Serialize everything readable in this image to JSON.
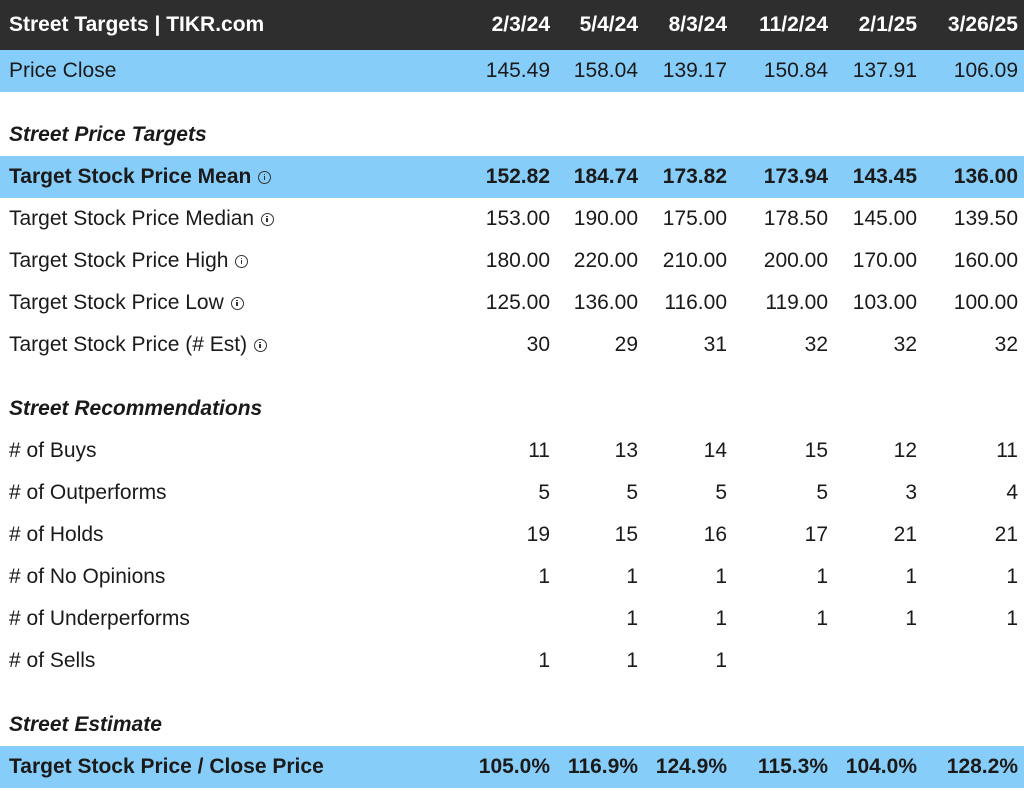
{
  "header": {
    "title": "Street Targets | TIKR.com",
    "dates": [
      "2/3/24",
      "5/4/24",
      "8/3/24",
      "11/2/24",
      "2/1/25",
      "3/26/25"
    ]
  },
  "price_close": {
    "label": "Price Close",
    "values": [
      "145.49",
      "158.04",
      "139.17",
      "150.84",
      "137.91",
      "106.09"
    ]
  },
  "sections": {
    "price_targets": "Street Price Targets",
    "recommendations": "Street Recommendations",
    "estimate": "Street Estimate"
  },
  "targets": [
    {
      "label": "Target Stock Price Mean",
      "info": true,
      "values": [
        "152.82",
        "184.74",
        "173.82",
        "173.94",
        "143.45",
        "136.00"
      ]
    },
    {
      "label": "Target Stock Price Median",
      "info": true,
      "values": [
        "153.00",
        "190.00",
        "175.00",
        "178.50",
        "145.00",
        "139.50"
      ]
    },
    {
      "label": "Target Stock Price High",
      "info": true,
      "values": [
        "180.00",
        "220.00",
        "210.00",
        "200.00",
        "170.00",
        "160.00"
      ]
    },
    {
      "label": "Target Stock Price Low",
      "info": true,
      "values": [
        "125.00",
        "136.00",
        "116.00",
        "119.00",
        "103.00",
        "100.00"
      ]
    },
    {
      "label": "Target Stock Price (# Est)",
      "info": true,
      "values": [
        "30",
        "29",
        "31",
        "32",
        "32",
        "32"
      ]
    }
  ],
  "recommendations": [
    {
      "label": "# of Buys",
      "values": [
        "11",
        "13",
        "14",
        "15",
        "12",
        "11"
      ]
    },
    {
      "label": "# of Outperforms",
      "values": [
        "5",
        "5",
        "5",
        "5",
        "3",
        "4"
      ]
    },
    {
      "label": "# of Holds",
      "values": [
        "19",
        "15",
        "16",
        "17",
        "21",
        "21"
      ]
    },
    {
      "label": "# of No Opinions",
      "values": [
        "1",
        "1",
        "1",
        "1",
        "1",
        "1"
      ]
    },
    {
      "label": "# of Underperforms",
      "values": [
        "",
        "1",
        "1",
        "1",
        "1",
        "1"
      ]
    },
    {
      "label": "# of Sells",
      "values": [
        "1",
        "1",
        "1",
        "",
        "",
        ""
      ]
    }
  ],
  "estimate": {
    "label": "Target Stock Price / Close Price",
    "values": [
      "105.0%",
      "116.9%",
      "124.9%",
      "115.3%",
      "104.0%",
      "128.2%"
    ]
  },
  "colors": {
    "header_bg": "#2e2e2e",
    "highlight_bg": "#87cdf9"
  },
  "icons": {
    "info": "info-icon"
  }
}
